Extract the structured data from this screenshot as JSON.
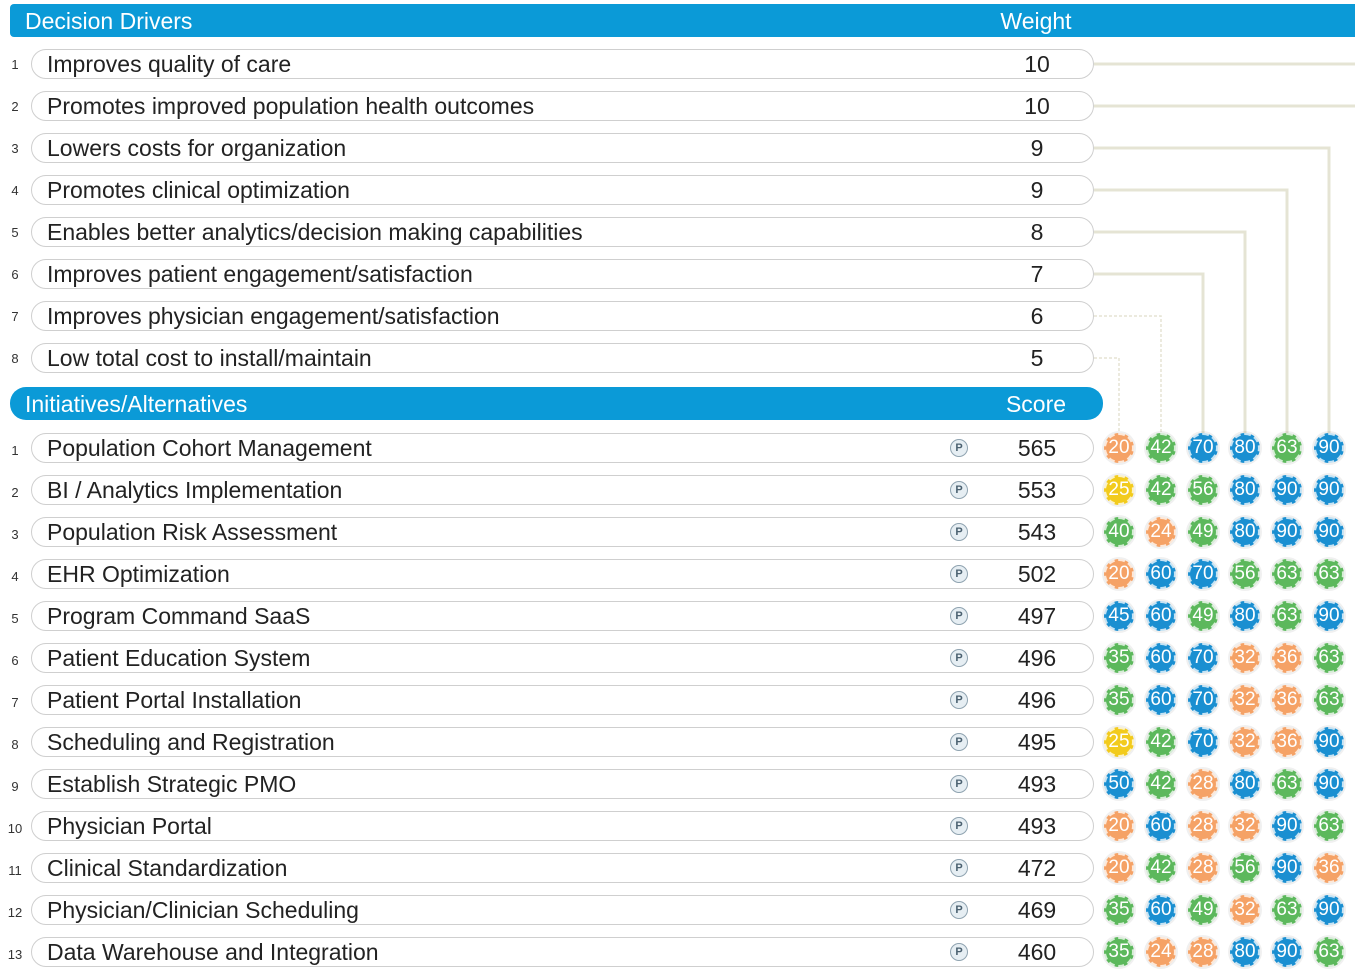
{
  "drivers_header": {
    "title": "Decision Drivers",
    "column": "Weight"
  },
  "drivers": [
    {
      "num": "1",
      "label": "Improves quality of care",
      "weight": "10"
    },
    {
      "num": "2",
      "label": "Promotes improved population health outcomes",
      "weight": "10"
    },
    {
      "num": "3",
      "label": "Lowers costs for organization",
      "weight": "9"
    },
    {
      "num": "4",
      "label": "Promotes clinical optimization",
      "weight": "9"
    },
    {
      "num": "5",
      "label": "Enables better analytics/decision making capabilities",
      "weight": "8"
    },
    {
      "num": "6",
      "label": "Improves patient engagement/satisfaction",
      "weight": "7"
    },
    {
      "num": "7",
      "label": "Improves physician engagement/satisfaction",
      "weight": "6"
    },
    {
      "num": "8",
      "label": "Low total cost to install/maintain",
      "weight": "5"
    }
  ],
  "initiatives_header": {
    "title": "Initiatives/Alternatives",
    "column": "Score"
  },
  "initiatives": [
    {
      "num": "1",
      "label": "Population Cohort Management",
      "icon": "P",
      "score": "565",
      "ratings": [
        "20",
        "42",
        "70",
        "80",
        "63",
        "90"
      ]
    },
    {
      "num": "2",
      "label": "BI / Analytics Implementation",
      "icon": "P",
      "score": "553",
      "ratings": [
        "25",
        "42",
        "56",
        "80",
        "90",
        "90"
      ]
    },
    {
      "num": "3",
      "label": "Population Risk Assessment",
      "icon": "P",
      "score": "543",
      "ratings": [
        "40",
        "24",
        "49",
        "80",
        "90",
        "90"
      ]
    },
    {
      "num": "4",
      "label": "EHR Optimization",
      "icon": "P",
      "score": "502",
      "ratings": [
        "20",
        "60",
        "70",
        "56",
        "63",
        "63"
      ]
    },
    {
      "num": "5",
      "label": "Program Command SaaS",
      "icon": "P",
      "score": "497",
      "ratings": [
        "45",
        "60",
        "49",
        "80",
        "63",
        "90"
      ]
    },
    {
      "num": "6",
      "label": "Patient Education System",
      "icon": "P",
      "score": "496",
      "ratings": [
        "35",
        "60",
        "70",
        "32",
        "36",
        "63"
      ]
    },
    {
      "num": "7",
      "label": "Patient Portal Installation",
      "icon": "P",
      "score": "496",
      "ratings": [
        "35",
        "60",
        "70",
        "32",
        "36",
        "63"
      ]
    },
    {
      "num": "8",
      "label": "Scheduling and Registration",
      "icon": "P",
      "score": "495",
      "ratings": [
        "25",
        "42",
        "70",
        "32",
        "36",
        "90"
      ]
    },
    {
      "num": "9",
      "label": "Establish Strategic PMO",
      "icon": "P",
      "score": "493",
      "ratings": [
        "50",
        "42",
        "28",
        "80",
        "63",
        "90"
      ]
    },
    {
      "num": "10",
      "label": "Physician Portal",
      "icon": "P",
      "score": "493",
      "ratings": [
        "20",
        "60",
        "28",
        "32",
        "90",
        "63"
      ]
    },
    {
      "num": "11",
      "label": "Clinical Standardization",
      "icon": "P",
      "score": "472",
      "ratings": [
        "20",
        "42",
        "28",
        "56",
        "90",
        "36"
      ]
    },
    {
      "num": "12",
      "label": "Physician/Clinician Scheduling",
      "icon": "P",
      "score": "469",
      "ratings": [
        "35",
        "60",
        "49",
        "32",
        "63",
        "90"
      ]
    },
    {
      "num": "13",
      "label": "Data Warehouse and Integration",
      "icon": "P",
      "score": "460",
      "ratings": [
        "35",
        "24",
        "28",
        "80",
        "90",
        "63"
      ]
    }
  ],
  "rating_colors": {
    "20": "#f5a266",
    "24": "#f5a266",
    "25": "#f2cb1d",
    "28": "#f5a266",
    "32": "#f5a266",
    "35": "#5cb85c",
    "36": "#f5a266",
    "40": "#5cb85c",
    "42": "#5cb85c",
    "45": "#1a8fd1",
    "49": "#5cb85c",
    "50": "#1a8fd1",
    "56": "#5cb85c",
    "60": "#1a8fd1",
    "63": "#5cb85c",
    "70": "#1a8fd1",
    "80": "#1a8fd1",
    "90": "#1a8fd1"
  },
  "colors": {
    "header": "#0b9ad7",
    "connector": "#e5e4d4"
  }
}
